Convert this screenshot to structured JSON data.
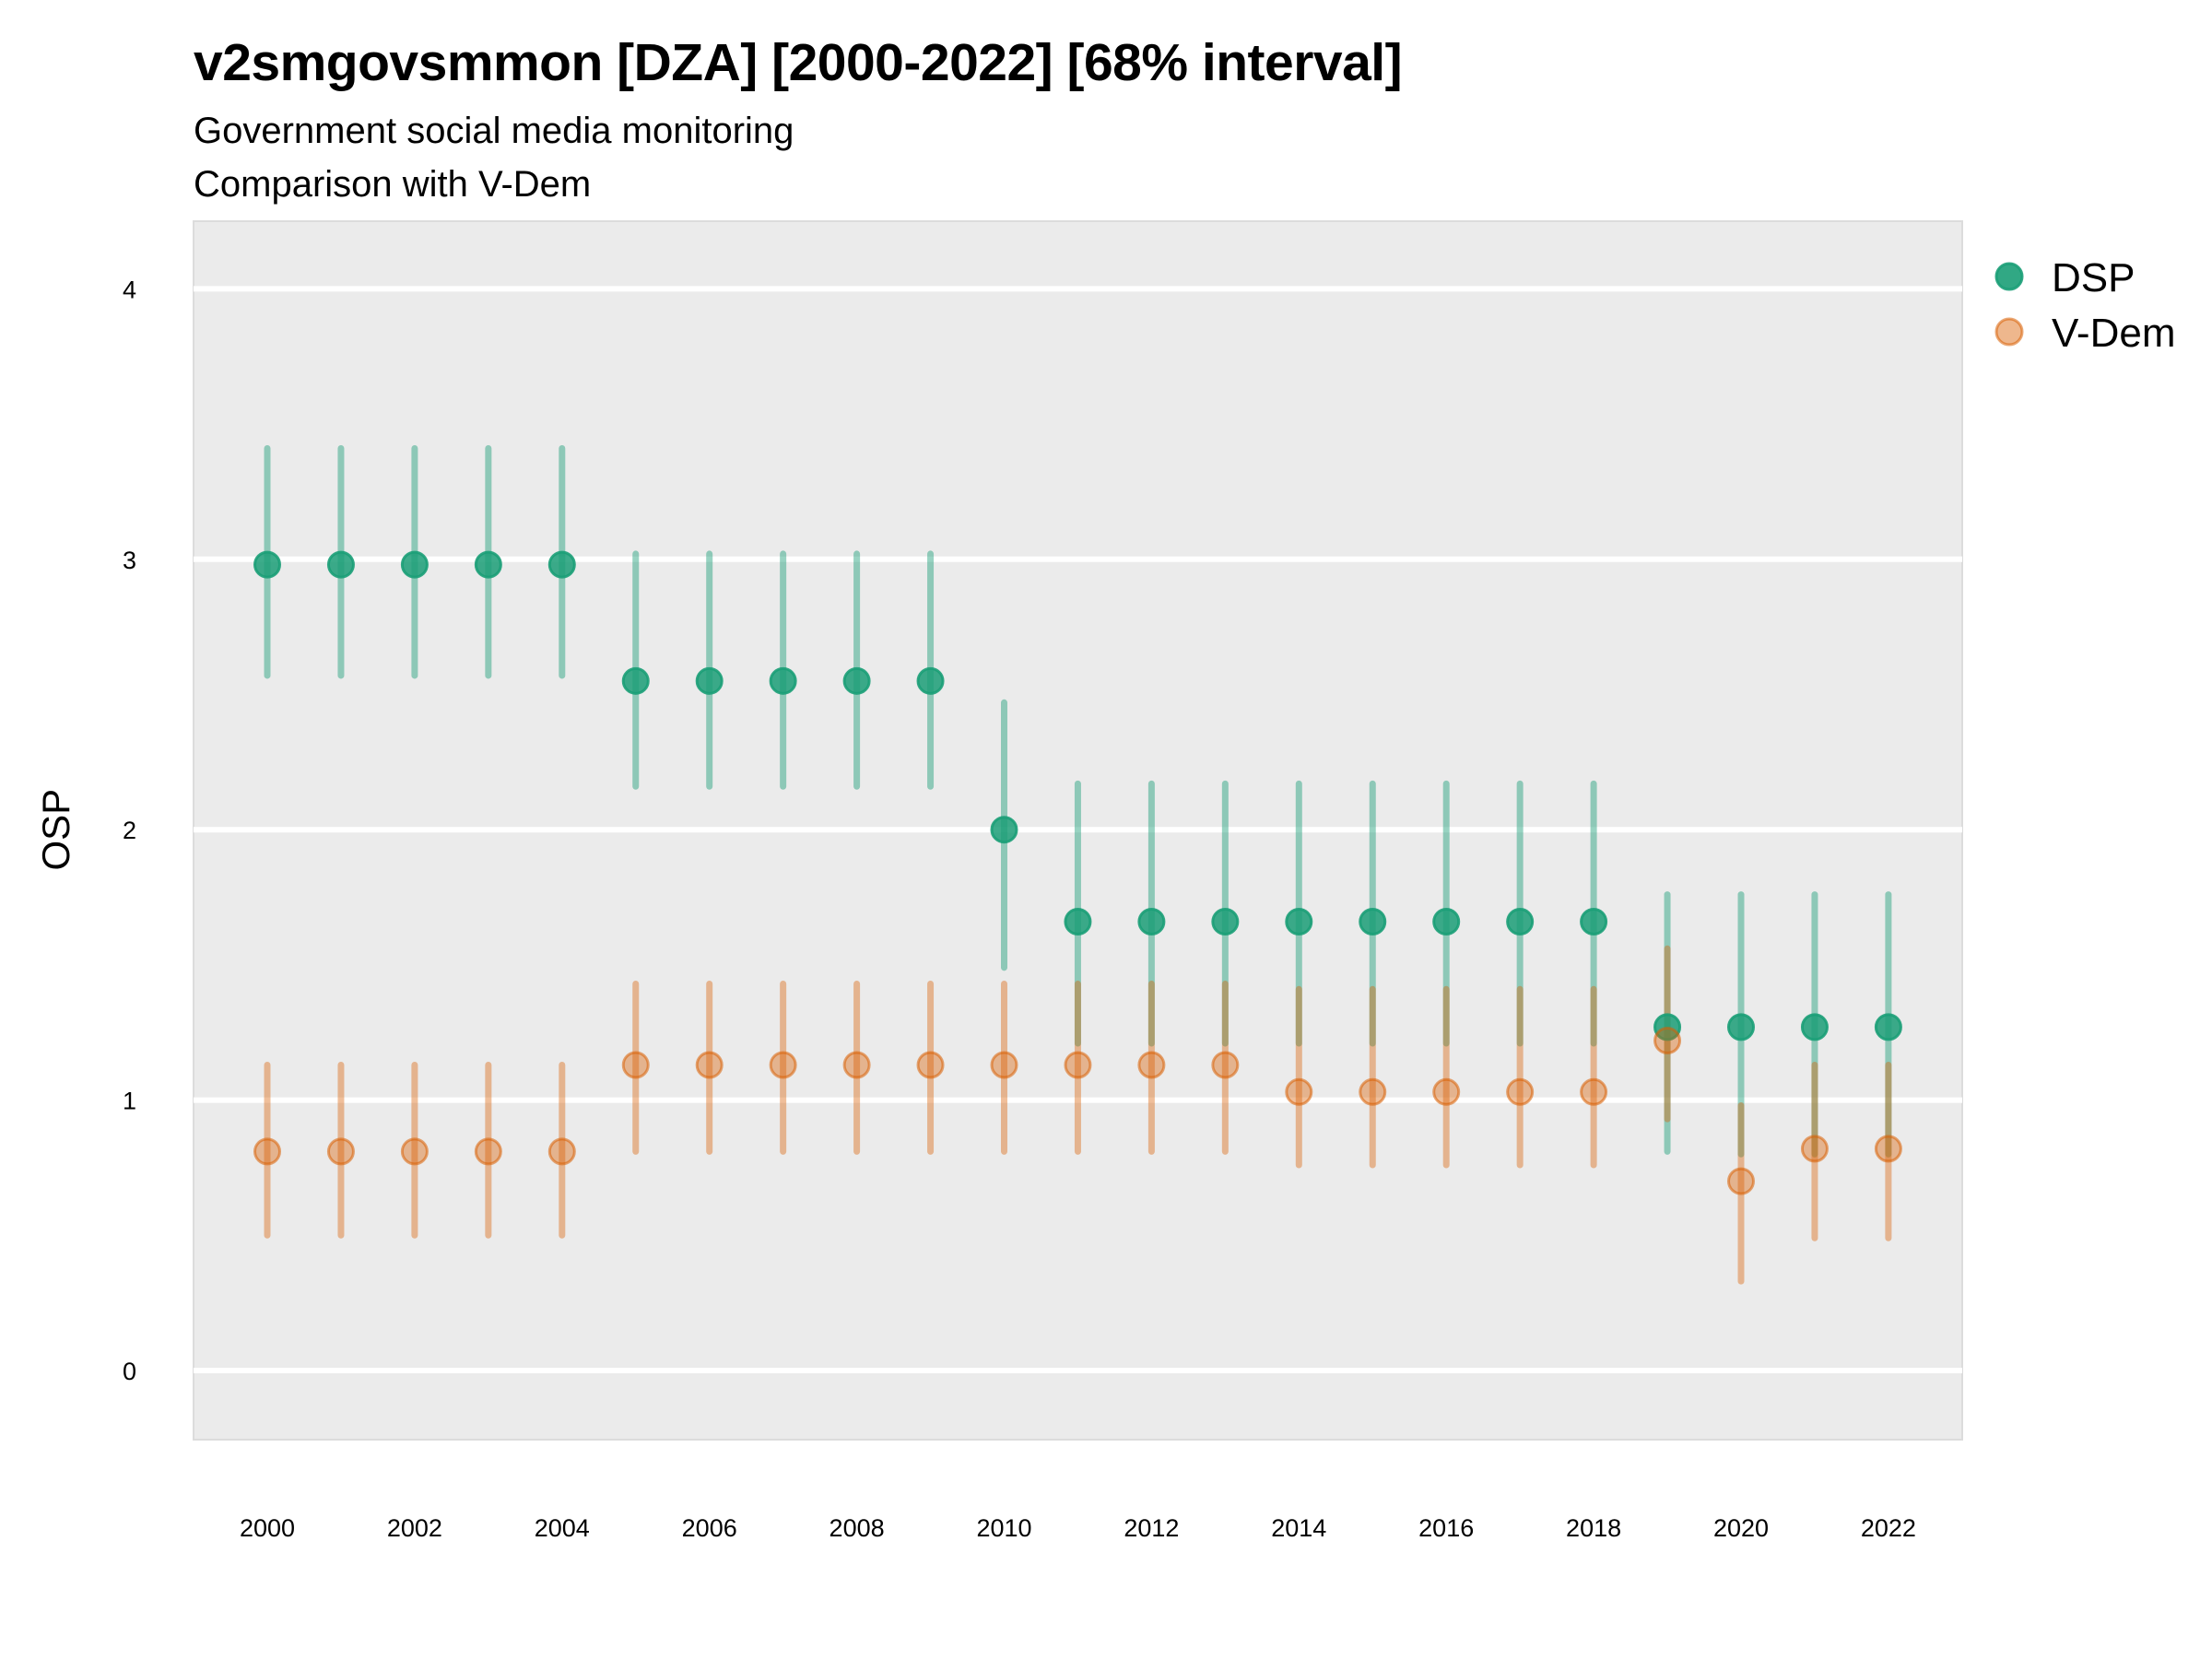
{
  "header": {
    "title": "v2smgovsmmon [DZA] [2000-2022] [68% interval]",
    "subtitle": "Government social media monitoring",
    "subtitle2": "Comparison with V-Dem"
  },
  "colors": {
    "DSP": "#1b9e77",
    "V-Dem": "#d95f02",
    "panel_bg": "#ebebeb",
    "grid": "#ffffff"
  },
  "chart_data": {
    "type": "scatter",
    "title": "v2smgovsmmon [DZA] [2000-2022] [68% interval]",
    "subtitle": [
      "Government social media monitoring",
      "Comparison with V-Dem"
    ],
    "xlabel": "",
    "ylabel": "OSP",
    "xlim": [
      1999,
      2023
    ],
    "ylim": [
      -0.25,
      4.25
    ],
    "x_ticks": [
      2000,
      2002,
      2004,
      2006,
      2008,
      2010,
      2012,
      2014,
      2016,
      2018,
      2020,
      2022
    ],
    "y_ticks": [
      0,
      1,
      2,
      3,
      4
    ],
    "grid": true,
    "legend": {
      "placement": "right-top",
      "entries": [
        "DSP",
        "V-Dem"
      ]
    },
    "interval": "68%",
    "x": [
      2000,
      2001,
      2002,
      2003,
      2004,
      2005,
      2006,
      2007,
      2008,
      2009,
      2010,
      2011,
      2012,
      2013,
      2014,
      2015,
      2016,
      2017,
      2018,
      2019,
      2020,
      2021,
      2022
    ],
    "series": [
      {
        "name": "DSP",
        "values": [
          2.98,
          2.98,
          2.98,
          2.98,
          2.98,
          2.55,
          2.55,
          2.55,
          2.55,
          2.55,
          2.0,
          1.66,
          1.66,
          1.66,
          1.66,
          1.66,
          1.66,
          1.66,
          1.66,
          1.27,
          1.27,
          1.27,
          1.27
        ],
        "lower": [
          2.57,
          2.57,
          2.57,
          2.57,
          2.57,
          2.16,
          2.16,
          2.16,
          2.16,
          2.16,
          1.49,
          1.21,
          1.21,
          1.21,
          1.21,
          1.21,
          1.21,
          1.21,
          1.21,
          0.81,
          0.8,
          0.8,
          0.8
        ],
        "upper": [
          3.41,
          3.41,
          3.41,
          3.41,
          3.41,
          3.02,
          3.02,
          3.02,
          3.02,
          3.02,
          2.47,
          2.17,
          2.17,
          2.17,
          2.17,
          2.17,
          2.17,
          2.17,
          2.17,
          1.76,
          1.76,
          1.76,
          1.76
        ]
      },
      {
        "name": "V-Dem",
        "values": [
          0.81,
          0.81,
          0.81,
          0.81,
          0.81,
          1.13,
          1.13,
          1.13,
          1.13,
          1.13,
          1.13,
          1.13,
          1.13,
          1.13,
          1.03,
          1.03,
          1.03,
          1.03,
          1.03,
          1.22,
          0.7,
          0.82,
          0.82
        ],
        "lower": [
          0.5,
          0.5,
          0.5,
          0.5,
          0.5,
          0.81,
          0.81,
          0.81,
          0.81,
          0.81,
          0.81,
          0.81,
          0.81,
          0.81,
          0.76,
          0.76,
          0.76,
          0.76,
          0.76,
          0.93,
          0.33,
          0.49,
          0.49
        ],
        "upper": [
          1.13,
          1.13,
          1.13,
          1.13,
          1.13,
          1.43,
          1.43,
          1.43,
          1.43,
          1.43,
          1.43,
          1.43,
          1.43,
          1.43,
          1.41,
          1.41,
          1.41,
          1.41,
          1.41,
          1.56,
          0.98,
          1.13,
          1.13
        ]
      }
    ]
  }
}
